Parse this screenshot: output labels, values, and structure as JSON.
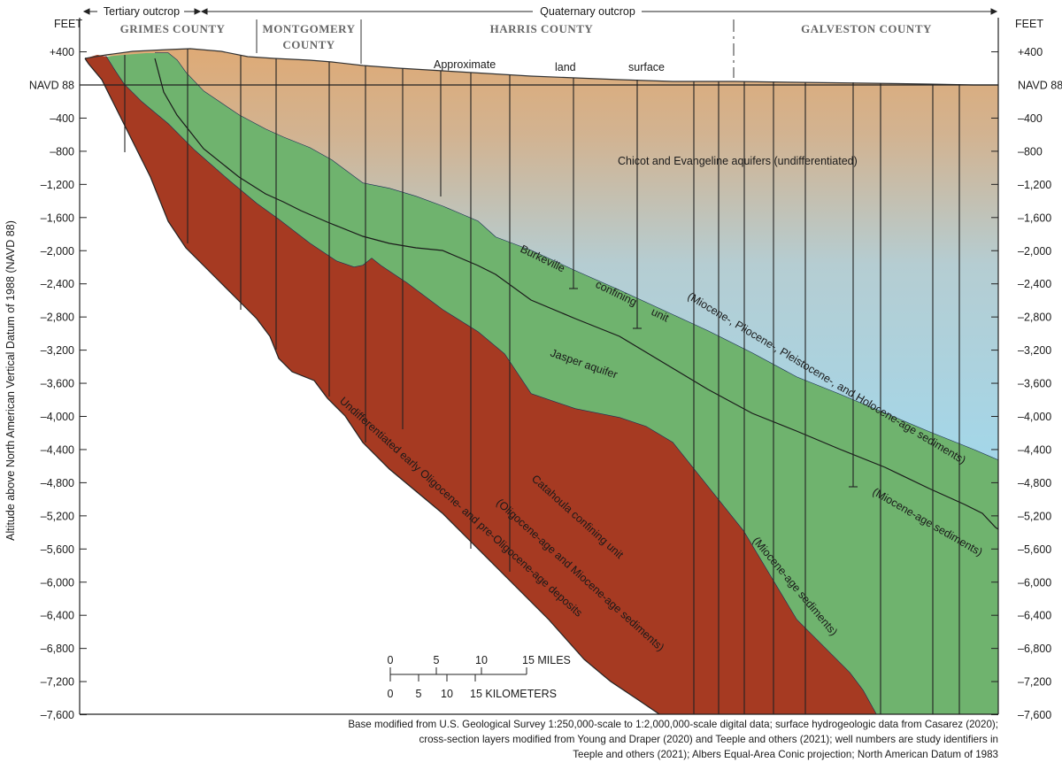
{
  "units": {
    "left": "FEET",
    "right": "FEET"
  },
  "yaxis": {
    "title": "Altitude above North American Vertical Datum of 1988 (NAVD 88)",
    "ticks": [
      {
        "label": "+400",
        "value": 400
      },
      {
        "label": "NAVD 88",
        "value": 0
      },
      {
        "label": "–400",
        "value": -400
      },
      {
        "label": "–800",
        "value": -800
      },
      {
        "label": "–1,200",
        "value": -1200
      },
      {
        "label": "–1,600",
        "value": -1600
      },
      {
        "label": "–2,000",
        "value": -2000
      },
      {
        "label": "–2,400",
        "value": -2400
      },
      {
        "label": "–2,800",
        "value": -2800
      },
      {
        "label": "–3,200",
        "value": -3200
      },
      {
        "label": "–3,600",
        "value": -3600
      },
      {
        "label": "–4,000",
        "value": -4000
      },
      {
        "label": "–4,400",
        "value": -4400
      },
      {
        "label": "–4,800",
        "value": -4800
      },
      {
        "label": "–5,200",
        "value": -5200
      },
      {
        "label": "–5,600",
        "value": -5600
      },
      {
        "label": "–6,000",
        "value": -6000
      },
      {
        "label": "–6,400",
        "value": -6400
      },
      {
        "label": "–6,800",
        "value": -6800
      },
      {
        "label": "–7,200",
        "value": -7200
      },
      {
        "label": "–7,600",
        "value": -7600
      }
    ]
  },
  "outcrops": {
    "tertiary": "Tertiary outcrop",
    "quaternary": "Quaternary outcrop"
  },
  "counties": {
    "grimes": "GRIMES  COUNTY",
    "montgomery_1": "MONTGOMERY",
    "montgomery_2": "COUNTY",
    "harris": "HARRIS COUNTY",
    "galveston": "GALVESTON COUNTY"
  },
  "surface_label": {
    "w1": "Approximate",
    "w2": "land",
    "w3": "surface"
  },
  "units_labels": {
    "chicot": "Chicot and Evangeline aquifers (undifferentiated)",
    "burk1": "Burkeville",
    "burk2": "confining",
    "burk3": "unit",
    "upper_age": "(Miocene-, Pliocene-, Pleistocene-, and Holocene-age sediments)",
    "jasper": "Jasper aquifer",
    "miocene_blue": "(Miocene-age sediments)",
    "miocene_green": "(Miocene-age sediments)",
    "catahoula": "Catahoula confining unit",
    "catahoula_age": "(Oligocene-age and Miocene-age sediments)",
    "undiff": "Undifferentiated early Oligocene- and pre-Oligocene-age deposits"
  },
  "scale_bar": {
    "miles": [
      "0",
      "5",
      "10",
      "15 MILES"
    ],
    "km": [
      "0",
      "5",
      "10",
      "15 KILOMETERS"
    ]
  },
  "colors": {
    "catahoula": "#a63a22",
    "jasper": "#6fb36e",
    "burkeville": "#3a63b8",
    "chicot_top": "#deaa76",
    "chicot_bottom": "#9ddaf1"
  },
  "note": [
    "Base modified from U.S. Geological Survey 1:250,000-scale to 1:2,000,000-scale digital data; surface hydrogeologic data from Casarez (2020);",
    "cross-section layers modified from Young and Draper (2020) and Teeple and others (2021); well numbers are study identifiers in",
    "Teeple and others (2021); Albers Equal-Area Conic projection; North American Datum of 1983"
  ]
}
